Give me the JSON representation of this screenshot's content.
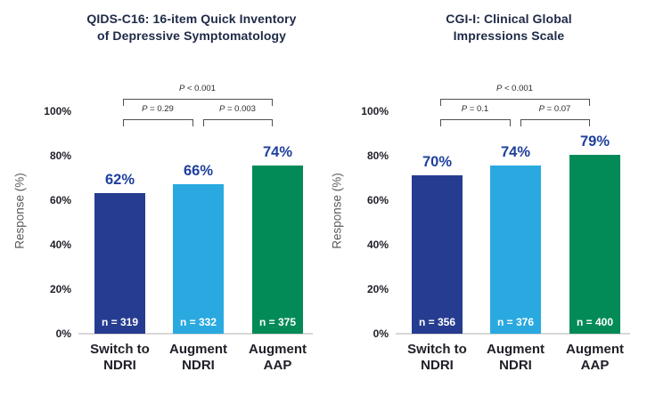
{
  "colors": {
    "background": "#ffffff",
    "bar_navy": "#263c90",
    "bar_light_blue": "#29a9e0",
    "bar_green": "#038b57",
    "value_label": "#1e3f9e",
    "title_text": "#1e2a47",
    "axis_text": "#1f1f28",
    "muted_text": "#5b5b60",
    "p_text": "#2b2b2b",
    "bracket_line": "#4f4f4f",
    "baseline_line": "#d8d8d8",
    "n_label_text": "#ffffff"
  },
  "chart_data": [
    {
      "type": "bar",
      "title": "QIDS-C16: 16-item Quick Inventory of Depressive Symptomatology",
      "title_lines": [
        "QIDS-C16: 16-item Quick Inventory",
        "of Depressive Symptomatology"
      ],
      "ylabel": "Response (%)",
      "ylim": [
        0,
        100
      ],
      "yticks_top_to_bottom": [
        "100%",
        "80%",
        "60%",
        "40%",
        "20%",
        "0%"
      ],
      "grid": false,
      "categories": [
        "Switch to NDRI",
        "Augment NDRI",
        "Augment AAP"
      ],
      "category_lines": [
        [
          "Switch to",
          "NDRI"
        ],
        [
          "Augment",
          "NDRI"
        ],
        [
          "Augment",
          "AAP"
        ]
      ],
      "values": [
        62,
        66,
        74
      ],
      "value_labels": [
        "62%",
        "66%",
        "74%"
      ],
      "n_values": [
        319,
        332,
        375
      ],
      "n_labels": [
        "n = 319",
        "n = 332",
        "n = 375"
      ],
      "bar_colors": [
        "#263c90",
        "#29a9e0",
        "#038b57"
      ],
      "p_annotations": [
        {
          "label": "P < 0.001",
          "label_prefix": "P",
          "label_rest": " < 0.001",
          "from": 0,
          "to": 2,
          "row": "upper"
        },
        {
          "label": "P = 0.29",
          "label_prefix": "P",
          "label_rest": " = 0.29",
          "from": 0,
          "to": 1,
          "row": "lower"
        },
        {
          "label": "P = 0.003",
          "label_prefix": "P",
          "label_rest": " = 0.003",
          "from": 1,
          "to": 2,
          "row": "lower"
        }
      ]
    },
    {
      "type": "bar",
      "title": "CGI-I: Clinical Global Impressions Scale",
      "title_lines": [
        "CGI-I: Clinical Global",
        "Impressions Scale"
      ],
      "ylabel": "Response (%)",
      "ylim": [
        0,
        100
      ],
      "yticks_top_to_bottom": [
        "100%",
        "80%",
        "60%",
        "40%",
        "20%",
        "0%"
      ],
      "grid": false,
      "categories": [
        "Switch to NDRI",
        "Augment NDRI",
        "Augment AAP"
      ],
      "category_lines": [
        [
          "Switch to",
          "NDRI"
        ],
        [
          "Augment",
          "NDRI"
        ],
        [
          "Augment",
          "AAP"
        ]
      ],
      "values": [
        70,
        74,
        79
      ],
      "value_labels": [
        "70%",
        "74%",
        "79%"
      ],
      "n_values": [
        356,
        376,
        400
      ],
      "n_labels": [
        "n = 356",
        "n = 376",
        "n = 400"
      ],
      "bar_colors": [
        "#263c90",
        "#29a9e0",
        "#038b57"
      ],
      "p_annotations": [
        {
          "label": "P < 0.001",
          "label_prefix": "P",
          "label_rest": " < 0.001",
          "from": 0,
          "to": 2,
          "row": "upper"
        },
        {
          "label": "P = 0.1",
          "label_prefix": "P",
          "label_rest": " = 0.1",
          "from": 0,
          "to": 1,
          "row": "lower"
        },
        {
          "label": "P = 0.07",
          "label_prefix": "P",
          "label_rest": " = 0.07",
          "from": 1,
          "to": 2,
          "row": "lower"
        }
      ]
    }
  ]
}
